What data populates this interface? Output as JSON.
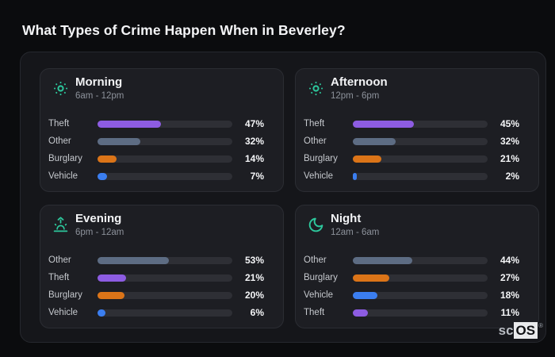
{
  "page": {
    "title": "What Types of Crime Happen When in Beverley?",
    "watermark": {
      "prefix": "sc",
      "suffix": "OS",
      "registered": "®"
    }
  },
  "colors": {
    "theft": "#8d5ce2",
    "other": "#5d6c83",
    "burglary": "#db7418",
    "vehicle": "#3b7ef0",
    "icon_accent": "#2dc79c",
    "bar_track": "#2e2f35"
  },
  "panels": [
    {
      "id": "morning",
      "title": "Morning",
      "time_range": "6am - 12pm",
      "icon": "sun",
      "bars": [
        {
          "label": "Theft",
          "value": 47,
          "display": "47%",
          "color_key": "theft"
        },
        {
          "label": "Other",
          "value": 32,
          "display": "32%",
          "color_key": "other"
        },
        {
          "label": "Burglary",
          "value": 14,
          "display": "14%",
          "color_key": "burglary"
        },
        {
          "label": "Vehicle",
          "value": 7,
          "display": "7%",
          "color_key": "vehicle"
        }
      ]
    },
    {
      "id": "afternoon",
      "title": "Afternoon",
      "time_range": "12pm - 6pm",
      "icon": "sun",
      "bars": [
        {
          "label": "Theft",
          "value": 45,
          "display": "45%",
          "color_key": "theft"
        },
        {
          "label": "Other",
          "value": 32,
          "display": "32%",
          "color_key": "other"
        },
        {
          "label": "Burglary",
          "value": 21,
          "display": "21%",
          "color_key": "burglary"
        },
        {
          "label": "Vehicle",
          "value": 2,
          "display": "2%",
          "color_key": "vehicle"
        }
      ]
    },
    {
      "id": "evening",
      "title": "Evening",
      "time_range": "6pm - 12am",
      "icon": "sunset",
      "bars": [
        {
          "label": "Other",
          "value": 53,
          "display": "53%",
          "color_key": "other"
        },
        {
          "label": "Theft",
          "value": 21,
          "display": "21%",
          "color_key": "theft"
        },
        {
          "label": "Burglary",
          "value": 20,
          "display": "20%",
          "color_key": "burglary"
        },
        {
          "label": "Vehicle",
          "value": 6,
          "display": "6%",
          "color_key": "vehicle"
        }
      ]
    },
    {
      "id": "night",
      "title": "Night",
      "time_range": "12am - 6am",
      "icon": "moon",
      "bars": [
        {
          "label": "Other",
          "value": 44,
          "display": "44%",
          "color_key": "other"
        },
        {
          "label": "Burglary",
          "value": 27,
          "display": "27%",
          "color_key": "burglary"
        },
        {
          "label": "Vehicle",
          "value": 18,
          "display": "18%",
          "color_key": "vehicle"
        },
        {
          "label": "Theft",
          "value": 11,
          "display": "11%",
          "color_key": "theft"
        }
      ]
    }
  ],
  "chart_data": [
    {
      "type": "bar",
      "orientation": "horizontal",
      "title": "Morning",
      "subtitle": "6am - 12pm",
      "categories": [
        "Theft",
        "Other",
        "Burglary",
        "Vehicle"
      ],
      "values": [
        47,
        32,
        14,
        7
      ],
      "unit": "%",
      "xlim": [
        0,
        100
      ],
      "bar_colors": [
        "#8d5ce2",
        "#5d6c83",
        "#db7418",
        "#3b7ef0"
      ],
      "grid": false,
      "value_labels": "right"
    },
    {
      "type": "bar",
      "orientation": "horizontal",
      "title": "Afternoon",
      "subtitle": "12pm - 6pm",
      "categories": [
        "Theft",
        "Other",
        "Burglary",
        "Vehicle"
      ],
      "values": [
        45,
        32,
        21,
        2
      ],
      "unit": "%",
      "xlim": [
        0,
        100
      ],
      "bar_colors": [
        "#8d5ce2",
        "#5d6c83",
        "#db7418",
        "#3b7ef0"
      ],
      "grid": false,
      "value_labels": "right"
    },
    {
      "type": "bar",
      "orientation": "horizontal",
      "title": "Evening",
      "subtitle": "6pm - 12am",
      "categories": [
        "Other",
        "Theft",
        "Burglary",
        "Vehicle"
      ],
      "values": [
        53,
        21,
        20,
        6
      ],
      "unit": "%",
      "xlim": [
        0,
        100
      ],
      "bar_colors": [
        "#5d6c83",
        "#8d5ce2",
        "#db7418",
        "#3b7ef0"
      ],
      "grid": false,
      "value_labels": "right"
    },
    {
      "type": "bar",
      "orientation": "horizontal",
      "title": "Night",
      "subtitle": "12am - 6am",
      "categories": [
        "Other",
        "Burglary",
        "Vehicle",
        "Theft"
      ],
      "values": [
        44,
        27,
        18,
        11
      ],
      "unit": "%",
      "xlim": [
        0,
        100
      ],
      "bar_colors": [
        "#5d6c83",
        "#db7418",
        "#3b7ef0",
        "#8d5ce2"
      ],
      "grid": false,
      "value_labels": "right"
    }
  ]
}
